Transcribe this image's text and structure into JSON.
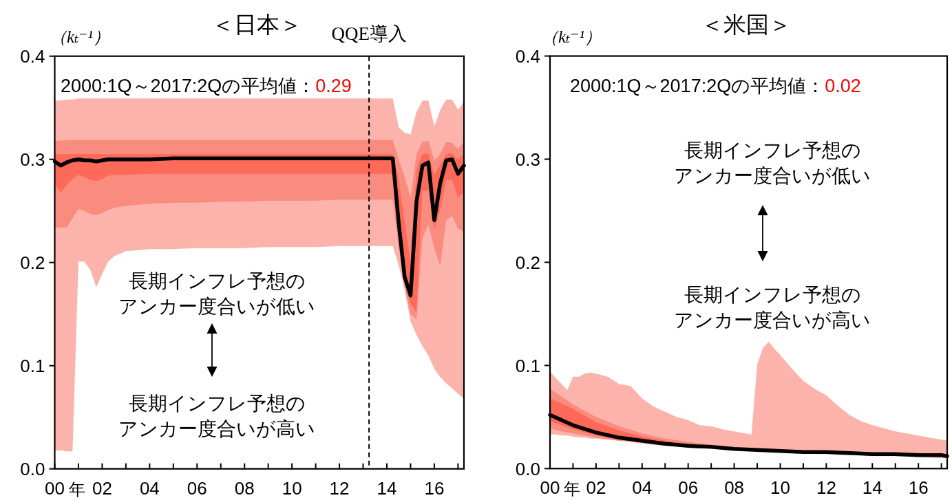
{
  "chart_data": [
    {
      "type": "line",
      "title": "＜日本＞",
      "ylabel": "（kₜ⁻¹）",
      "xlabel": "年",
      "x": [
        2000,
        2000.25,
        2000.5,
        2000.75,
        2001,
        2001.25,
        2001.5,
        2001.75,
        2002,
        2002.25,
        2002.5,
        2003,
        2004,
        2005,
        2006,
        2007,
        2008,
        2009,
        2010,
        2011,
        2012,
        2013,
        2014,
        2014.25,
        2014.5,
        2014.75,
        2015,
        2015.25,
        2015.5,
        2015.75,
        2016,
        2016.25,
        2016.5,
        2016.75,
        2017,
        2017.25
      ],
      "xlim": [
        2000,
        2017.25
      ],
      "xticks": [
        {
          "value": 2000,
          "label": "00"
        },
        {
          "value": 2001,
          "label": null
        },
        {
          "value": 2002,
          "label": "02"
        },
        {
          "value": 2003,
          "label": null
        },
        {
          "value": 2004,
          "label": "04"
        },
        {
          "value": 2005,
          "label": null
        },
        {
          "value": 2006,
          "label": "06"
        },
        {
          "value": 2007,
          "label": null
        },
        {
          "value": 2008,
          "label": "08"
        },
        {
          "value": 2009,
          "label": null
        },
        {
          "value": 2010,
          "label": "10"
        },
        {
          "value": 2011,
          "label": null
        },
        {
          "value": 2012,
          "label": "12"
        },
        {
          "value": 2013,
          "label": null
        },
        {
          "value": 2014,
          "label": "14"
        },
        {
          "value": 2015,
          "label": null
        },
        {
          "value": 2016,
          "label": "16"
        },
        {
          "value": 2017,
          "label": null
        }
      ],
      "ylim": [
        0,
        0.4
      ],
      "yticks": [
        {
          "value": 0,
          "label": "0.0"
        },
        0.1,
        0.2,
        0.3,
        0.4
      ],
      "series": [
        {
          "type": "area",
          "color": "#fcb3ab",
          "values": [
            null,
            null,
            null,
            null,
            null,
            null,
            null,
            null,
            null,
            null,
            null,
            null,
            null,
            null,
            null,
            null,
            null,
            null,
            null,
            null,
            null,
            null,
            null,
            null,
            null,
            null,
            null,
            null,
            null,
            null,
            null,
            null,
            null,
            null,
            null,
            null
          ],
          "upper": [
            0.357,
            0.357,
            0.358,
            0.358,
            0.359,
            0.359,
            0.359,
            0.359,
            0.359,
            0.359,
            0.359,
            0.359,
            0.359,
            0.359,
            0.359,
            0.359,
            0.359,
            0.359,
            0.359,
            0.359,
            0.359,
            0.359,
            0.359,
            0.359,
            0.331,
            0.326,
            0.324,
            0.346,
            0.357,
            0.357,
            0.332,
            0.348,
            0.358,
            0.358,
            0.348,
            0.356
          ],
          "lower": [
            0.018,
            0.018,
            0.017,
            0.017,
            0.201,
            0.201,
            0.193,
            0.176,
            0.189,
            0.201,
            0.206,
            0.211,
            0.213,
            0.213,
            0.214,
            0.214,
            0.214,
            0.215,
            0.215,
            0.215,
            0.216,
            0.216,
            0.216,
            0.216,
            0.197,
            0.174,
            0.143,
            0.13,
            0.119,
            0.11,
            0.097,
            0.089,
            0.083,
            0.078,
            0.073,
            0.068
          ]
        },
        {
          "type": "area",
          "color": "#fa8b7f",
          "values": [
            null,
            null,
            null,
            null,
            null,
            null,
            null,
            null,
            null,
            null,
            null,
            null,
            null,
            null,
            null,
            null,
            null,
            null,
            null,
            null,
            null,
            null,
            null,
            null,
            null,
            null,
            null,
            null,
            null,
            null,
            null,
            null,
            null,
            null,
            null,
            null
          ],
          "upper": [
            0.318,
            0.318,
            0.319,
            0.319,
            0.319,
            0.319,
            0.319,
            0.319,
            0.319,
            0.319,
            0.319,
            0.319,
            0.319,
            0.319,
            0.319,
            0.319,
            0.319,
            0.319,
            0.319,
            0.319,
            0.319,
            0.319,
            0.319,
            0.319,
            0.3,
            0.283,
            0.263,
            0.305,
            0.317,
            0.318,
            0.299,
            0.305,
            0.317,
            0.316,
            0.31,
            0.317
          ],
          "lower": [
            0.234,
            0.234,
            0.234,
            0.243,
            0.252,
            0.25,
            0.247,
            0.246,
            0.248,
            0.251,
            0.253,
            0.255,
            0.257,
            0.258,
            0.258,
            0.259,
            0.259,
            0.26,
            0.26,
            0.26,
            0.261,
            0.261,
            0.261,
            0.261,
            0.215,
            0.176,
            0.15,
            0.145,
            0.223,
            0.237,
            0.214,
            0.197,
            0.241,
            0.245,
            0.233,
            0.23
          ]
        },
        {
          "type": "area",
          "color": "#fe6a59",
          "values": [
            null,
            null,
            null,
            null,
            null,
            null,
            null,
            null,
            null,
            null,
            null,
            null,
            null,
            null,
            null,
            null,
            null,
            null,
            null,
            null,
            null,
            null,
            null,
            null,
            null,
            null,
            null,
            null,
            null,
            null,
            null,
            null,
            null,
            null,
            null,
            null
          ],
          "upper": [
            0.305,
            0.305,
            0.305,
            0.305,
            0.305,
            0.305,
            0.305,
            0.305,
            0.305,
            0.305,
            0.305,
            0.305,
            0.305,
            0.305,
            0.305,
            0.305,
            0.305,
            0.305,
            0.305,
            0.305,
            0.305,
            0.305,
            0.305,
            0.305,
            0.28,
            0.24,
            0.2,
            0.29,
            0.305,
            0.306,
            0.285,
            0.295,
            0.305,
            0.306,
            0.3,
            0.306
          ],
          "lower": [
            0.276,
            0.268,
            0.275,
            0.281,
            0.285,
            0.283,
            0.28,
            0.279,
            0.281,
            0.284,
            0.285,
            0.285,
            0.286,
            0.286,
            0.286,
            0.286,
            0.286,
            0.286,
            0.286,
            0.286,
            0.286,
            0.286,
            0.286,
            0.286,
            0.23,
            0.18,
            0.16,
            0.152,
            0.27,
            0.27,
            0.232,
            0.251,
            0.28,
            0.28,
            0.263,
            0.268
          ]
        },
        {
          "type": "line",
          "color": "#000000",
          "values": [
            0.298,
            0.294,
            0.297,
            0.299,
            0.3,
            0.299,
            0.299,
            0.298,
            0.299,
            0.3,
            0.3,
            0.3,
            0.3,
            0.301,
            0.301,
            0.301,
            0.301,
            0.301,
            0.301,
            0.301,
            0.301,
            0.301,
            0.301,
            0.301,
            0.238,
            0.186,
            0.168,
            0.259,
            0.294,
            0.297,
            0.241,
            0.277,
            0.299,
            0.3,
            0.286,
            0.294
          ]
        }
      ],
      "ref_lines": [
        {
          "axis": "x",
          "value": 2013.25,
          "label": "QQE導入",
          "color": "#000000",
          "line_style": "dashed"
        }
      ],
      "annotations": [
        "2000:1Q～2017:2Qの平均値：",
        "0.29",
        "長期インフレ予想のアンカー度合いが低い",
        "長期インフレ予想のアンカー度合いが高い"
      ]
    },
    {
      "type": "line",
      "title": "＜米国＞",
      "ylabel": "（kₜ⁻¹）",
      "xlabel": "年",
      "xlim": [
        2000,
        2017.25
      ],
      "xticks": [
        {
          "value": 2000,
          "label": "00"
        },
        {
          "value": 2001,
          "label": null
        },
        {
          "value": 2002,
          "label": "02"
        },
        {
          "value": 2003,
          "label": null
        },
        {
          "value": 2004,
          "label": "04"
        },
        {
          "value": 2005,
          "label": null
        },
        {
          "value": 2006,
          "label": "06"
        },
        {
          "value": 2007,
          "label": null
        },
        {
          "value": 2008,
          "label": "08"
        },
        {
          "value": 2009,
          "label": null
        },
        {
          "value": 2010,
          "label": "10"
        },
        {
          "value": 2011,
          "label": null
        },
        {
          "value": 2012,
          "label": "12"
        },
        {
          "value": 2013,
          "label": null
        },
        {
          "value": 2014,
          "label": "14"
        },
        {
          "value": 2015,
          "label": null
        },
        {
          "value": 2016,
          "label": "16"
        },
        {
          "value": 2017,
          "label": null
        }
      ],
      "ylim": [
        0,
        0.4
      ],
      "yticks": [
        {
          "value": 0,
          "label": "0.0"
        },
        0.1,
        0.2,
        0.3,
        0.4
      ],
      "series": [
        {
          "type": "area",
          "color": "#fcb3ab",
          "x": [
            2000,
            2000.25,
            2000.5,
            2000.75,
            2001,
            2001.25,
            2001.5,
            2001.75,
            2002,
            2002.5,
            2003,
            2003.5,
            2004,
            2004.5,
            2005,
            2005.5,
            2006,
            2006.5,
            2007,
            2007.5,
            2008,
            2008.5,
            2008.75,
            2009,
            2009.25,
            2009.5,
            2009.75,
            2010,
            2010.5,
            2011,
            2011.5,
            2012,
            2012.5,
            2013,
            2013.5,
            2014,
            2015,
            2016,
            2017,
            2017.25
          ],
          "values": [
            null,
            null,
            null,
            null,
            null,
            null,
            null,
            null,
            null,
            null,
            null,
            null,
            null,
            null,
            null,
            null,
            null,
            null,
            null,
            null,
            null,
            null,
            null,
            null,
            null,
            null,
            null,
            null,
            null,
            null,
            null,
            null,
            null,
            null,
            null,
            null,
            null,
            null,
            null,
            null
          ],
          "upper": [
            0.094,
            0.088,
            0.082,
            0.076,
            0.089,
            0.089,
            0.092,
            0.093,
            0.092,
            0.089,
            0.082,
            0.08,
            0.068,
            0.06,
            0.055,
            0.05,
            0.047,
            0.042,
            0.041,
            0.038,
            0.036,
            0.034,
            0.033,
            0.101,
            0.117,
            0.123,
            0.116,
            0.11,
            0.097,
            0.085,
            0.077,
            0.071,
            0.061,
            0.052,
            0.046,
            0.042,
            0.036,
            0.032,
            0.028,
            0.027
          ],
          "lower": [
            0.033,
            0.033,
            0.032,
            0.032,
            0.031,
            0.03,
            0.03,
            0.029,
            0.029,
            0.028,
            0.027,
            0.026,
            0.024,
            0.023,
            0.022,
            0.022,
            0.021,
            0.02,
            0.02,
            0.019,
            0.019,
            0.018,
            0.018,
            0.017,
            0.017,
            0.017,
            0.016,
            0.016,
            0.015,
            0.015,
            0.014,
            0.014,
            0.013,
            0.013,
            0.013,
            0.012,
            0.012,
            0.011,
            0.01,
            0.01
          ]
        },
        {
          "type": "area",
          "color": "#fa8b7f",
          "x": [
            2000,
            2000.5,
            2001,
            2002,
            2003,
            2004,
            2005,
            2006,
            2007,
            2008,
            2009,
            2010,
            2011,
            2012,
            2013,
            2014,
            2015,
            2016,
            2017,
            2017.25
          ],
          "values": [
            null,
            null,
            null,
            null,
            null,
            null,
            null,
            null,
            null,
            null,
            null,
            null,
            null,
            null,
            null,
            null,
            null,
            null,
            null,
            null
          ],
          "upper": [
            0.077,
            0.07,
            0.062,
            0.05,
            0.041,
            0.034,
            0.029,
            0.026,
            0.023,
            0.021,
            0.02,
            0.019,
            0.018,
            0.017,
            0.017,
            0.016,
            0.015,
            0.015,
            0.014,
            0.014
          ],
          "lower": [
            0.039,
            0.036,
            0.034,
            0.03,
            0.027,
            0.025,
            0.023,
            0.021,
            0.02,
            0.019,
            0.018,
            0.017,
            0.016,
            0.015,
            0.014,
            0.013,
            0.013,
            0.012,
            0.011,
            0.011
          ]
        },
        {
          "type": "area",
          "color": "#fe6a59",
          "x": [
            2000,
            2000.5,
            2001,
            2002,
            2003,
            2004,
            2005,
            2006,
            2007,
            2008,
            2009,
            2010,
            2011,
            2012,
            2013,
            2014,
            2015,
            2016,
            2017,
            2017.25
          ],
          "values": [
            null,
            null,
            null,
            null,
            null,
            null,
            null,
            null,
            null,
            null,
            null,
            null,
            null,
            null,
            null,
            null,
            null,
            null,
            null,
            null
          ],
          "upper": [
            0.068,
            0.063,
            0.058,
            0.045,
            0.037,
            0.031,
            0.027,
            0.024,
            0.022,
            0.02,
            0.019,
            0.018,
            0.017,
            0.017,
            0.016,
            0.015,
            0.015,
            0.014,
            0.014,
            0.013
          ],
          "lower": [
            0.046,
            0.042,
            0.038,
            0.032,
            0.028,
            0.025,
            0.023,
            0.021,
            0.02,
            0.019,
            0.018,
            0.017,
            0.016,
            0.015,
            0.015,
            0.014,
            0.013,
            0.013,
            0.012,
            0.012
          ]
        },
        {
          "type": "line",
          "color": "#000000",
          "x": [
            2000,
            2000.5,
            2001,
            2002,
            2003,
            2004,
            2005,
            2006,
            2007,
            2008,
            2009,
            2010,
            2011,
            2012,
            2013,
            2014,
            2015,
            2016,
            2017,
            2017.25
          ],
          "values": [
            0.052,
            0.047,
            0.042,
            0.035,
            0.03,
            0.027,
            0.024,
            0.022,
            0.021,
            0.019,
            0.018,
            0.017,
            0.016,
            0.016,
            0.015,
            0.014,
            0.014,
            0.013,
            0.013,
            0.012
          ]
        }
      ],
      "annotations": [
        "2000:1Q～2017:2Qの平均値：",
        "0.02",
        "長期インフレ予想のアンカー度合いが低い",
        "長期インフレ予想のアンカー度合いが高い"
      ]
    }
  ]
}
